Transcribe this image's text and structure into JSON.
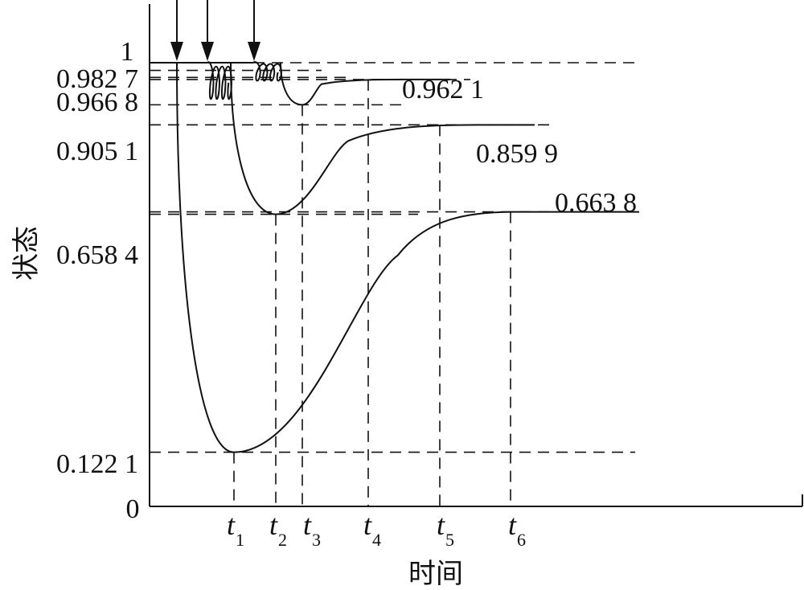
{
  "chart_data": {
    "type": "line",
    "title": "",
    "xlabel": "时间",
    "ylabel": "状态",
    "ylim": [
      0,
      1
    ],
    "yticks": [
      {
        "value": 1,
        "label": "1"
      },
      {
        "value": 0.9827,
        "label": "0.982 7"
      },
      {
        "value": 0.9668,
        "label": "0.966 8"
      },
      {
        "value": 0.9051,
        "label": "0.905 1"
      },
      {
        "value": 0.6584,
        "label": "0.658 4"
      },
      {
        "value": 0.1221,
        "label": "0.122 1"
      },
      {
        "value": 0,
        "label": "0"
      }
    ],
    "time_markers": [
      {
        "label": "t",
        "sub": "1"
      },
      {
        "label": "t",
        "sub": "2"
      },
      {
        "label": "t",
        "sub": "3"
      },
      {
        "label": "t",
        "sub": "4"
      },
      {
        "label": "t",
        "sub": "5"
      },
      {
        "label": "t",
        "sub": "6"
      }
    ],
    "series": [
      {
        "minimum": 0.1221,
        "final": 0.6638,
        "final_label": "0.663 8"
      },
      {
        "minimum": 0.6584,
        "final": 0.8599,
        "final_label": "0.859 9"
      },
      {
        "minimum": 0.9051,
        "final": 0.9621,
        "final_label": "0.962 1"
      }
    ],
    "disturbance_arrows": 3,
    "grid": false,
    "legend": "none"
  }
}
